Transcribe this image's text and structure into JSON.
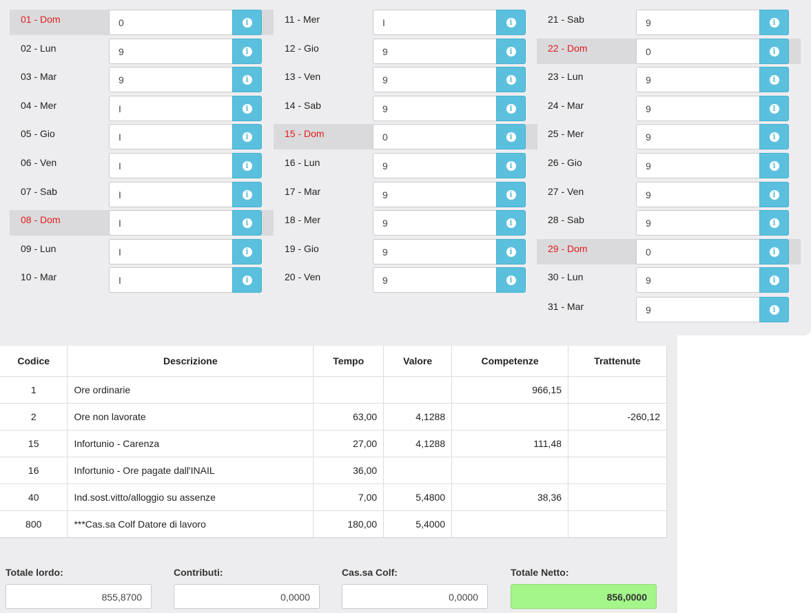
{
  "calendar": {
    "columns": [
      [
        {
          "label": "01 - Dom",
          "value": "0",
          "sunday": true
        },
        {
          "label": "02 - Lun",
          "value": "9"
        },
        {
          "label": "03 - Mar",
          "value": "9"
        },
        {
          "label": "04 - Mer",
          "value": "I"
        },
        {
          "label": "05 - Gio",
          "value": "I"
        },
        {
          "label": "06 - Ven",
          "value": "I"
        },
        {
          "label": "07 - Sab",
          "value": "I"
        },
        {
          "label": "08 - Dom",
          "value": "I",
          "sunday": true
        },
        {
          "label": "09 - Lun",
          "value": "I"
        },
        {
          "label": "10 - Mar",
          "value": "I"
        }
      ],
      [
        {
          "label": "11 - Mer",
          "value": "I"
        },
        {
          "label": "12 - Gio",
          "value": "9"
        },
        {
          "label": "13 - Ven",
          "value": "9"
        },
        {
          "label": "14 - Sab",
          "value": "9"
        },
        {
          "label": "15 - Dom",
          "value": "0",
          "sunday": true
        },
        {
          "label": "16 - Lun",
          "value": "9"
        },
        {
          "label": "17 - Mar",
          "value": "9"
        },
        {
          "label": "18 - Mer",
          "value": "9"
        },
        {
          "label": "19 - Gio",
          "value": "9"
        },
        {
          "label": "20 - Ven",
          "value": "9"
        }
      ],
      [
        {
          "label": "21 - Sab",
          "value": "9"
        },
        {
          "label": "22 - Dom",
          "value": "0",
          "sunday": true
        },
        {
          "label": "23 - Lun",
          "value": "9"
        },
        {
          "label": "24 - Mar",
          "value": "9"
        },
        {
          "label": "25 - Mer",
          "value": "9"
        },
        {
          "label": "26 - Gio",
          "value": "9"
        },
        {
          "label": "27 - Ven",
          "value": "9"
        },
        {
          "label": "28 - Sab",
          "value": "9"
        },
        {
          "label": "29 - Dom",
          "value": "0",
          "sunday": true
        },
        {
          "label": "30 - Lun",
          "value": "9"
        },
        {
          "label": "31 - Mar",
          "value": "9"
        }
      ]
    ],
    "info_icon": "info-circle-icon",
    "info_glyph": "i"
  },
  "table": {
    "headers": {
      "code": "Codice",
      "description": "Descrizione",
      "time": "Tempo",
      "value": "Valore",
      "earnings": "Competenze",
      "deductions": "Trattenute"
    },
    "rows": [
      {
        "code": "1",
        "description": "Ore ordinarie",
        "time": "",
        "value": "",
        "earnings": "966,15",
        "deductions": ""
      },
      {
        "code": "2",
        "description": "Ore non lavorate",
        "time": "63,00",
        "value": "4,1288",
        "earnings": "",
        "deductions": "-260,12"
      },
      {
        "code": "15",
        "description": "Infortunio - Carenza",
        "time": "27,00",
        "value": "4,1288",
        "earnings": "111,48",
        "deductions": ""
      },
      {
        "code": "16",
        "description": "Infortunio - Ore pagate dall'INAIL",
        "time": "36,00",
        "value": "",
        "earnings": "",
        "deductions": ""
      },
      {
        "code": "40",
        "description": "Ind.sost.vitto/alloggio su assenze",
        "time": "7,00",
        "value": "5,4800",
        "earnings": "38,36",
        "deductions": ""
      },
      {
        "code": "800",
        "description": "***Cas.sa Colf Datore di lavoro",
        "time": "180,00",
        "value": "5,4000",
        "earnings": "",
        "deductions": ""
      }
    ]
  },
  "totals": {
    "gross_label": "Totale lordo:",
    "gross_value": "855,8700",
    "contributions_label": "Contributi:",
    "contributions_value": "0,0000",
    "cassa_colf_label": "Cas.sa Colf:",
    "cassa_colf_value": "0,0000",
    "net_label": "Totale Netto:",
    "net_value": "856,0000"
  },
  "colors": {
    "sunday_text": "#e01b1b",
    "info_button": "#5bc0de",
    "net_field": "#a4f58a"
  }
}
